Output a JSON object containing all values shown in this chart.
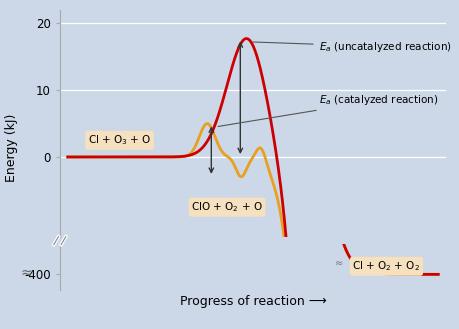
{
  "background_color": "#ccd8e8",
  "red_color": "#cc0000",
  "orange_color": "#e8a020",
  "box_color": "#f5e0c0",
  "ylabel": "Energy (kJ)",
  "xlabel": "Progress of reaction ⟶",
  "label_uncatalyzed": "$\\mathit{E_a}$ (uncatalyzed reaction)",
  "label_catalyzed": "$\\mathit{E_a}$ (catalyzed reaction)",
  "label_reactant": "Cl + O$_3$ + O",
  "label_intermediate": "ClO + O$_2$ + O",
  "label_product": "Cl + O$_2$ + O$_2$"
}
